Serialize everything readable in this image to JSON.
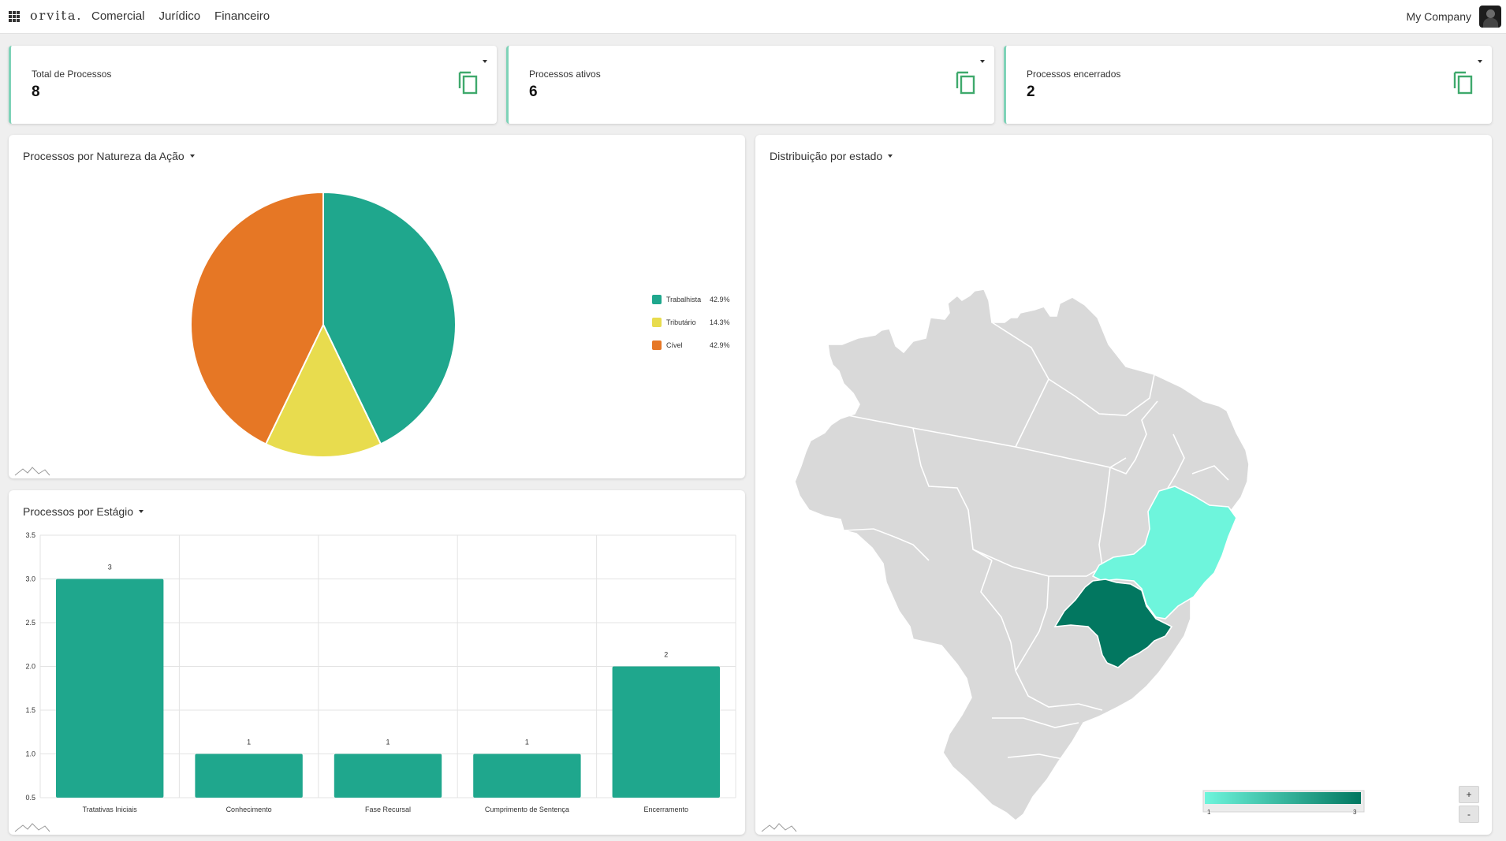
{
  "header": {
    "logo": "orvita.",
    "nav": [
      "Comercial",
      "Jurídico",
      "Financeiro"
    ],
    "company": "My Company"
  },
  "kpis": [
    {
      "label": "Total de Processos",
      "value": "8"
    },
    {
      "label": "Processos ativos",
      "value": "6"
    },
    {
      "label": "Processos encerrados",
      "value": "2"
    }
  ],
  "colors": {
    "teal": "#1fa78d",
    "yellow": "#e8dc4e",
    "orange": "#e67725",
    "map_low": "#6ef5dc",
    "map_high": "#027760"
  },
  "pie_card": {
    "title": "Processos por Natureza da Ação",
    "chart_data": {
      "type": "pie",
      "labels": [
        "Trabalhista",
        "Tributário",
        "Cível"
      ],
      "values": [
        42.9,
        14.3,
        42.9
      ],
      "display": [
        "42.9%",
        "14.3%",
        "42.9%"
      ],
      "colors": [
        "#1fa78d",
        "#e8dc4e",
        "#e67725"
      ]
    }
  },
  "bar_card": {
    "title": "Processos por Estágio",
    "chart_data": {
      "type": "bar",
      "categories": [
        "Tratativas Iniciais",
        "Conhecimento",
        "Fase Recursal",
        "Cumprimento de Sentença",
        "Encerramento"
      ],
      "values": [
        3,
        1,
        1,
        1,
        2
      ],
      "ylim": [
        0.5,
        3.5
      ],
      "yticks": [
        "0.5",
        "1.0",
        "1.5",
        "2.0",
        "2.5",
        "3.0",
        "3.5"
      ],
      "grid": true,
      "color": "#1fa78d"
    }
  },
  "map_card": {
    "title": "Distribuição por estado",
    "legend_min": "1",
    "legend_max": "3",
    "zoom_in": "+",
    "zoom_out": "-",
    "highlighted_states": [
      {
        "name": "Minas Gerais",
        "value": 1
      },
      {
        "name": "São Paulo",
        "value": 3
      }
    ]
  }
}
